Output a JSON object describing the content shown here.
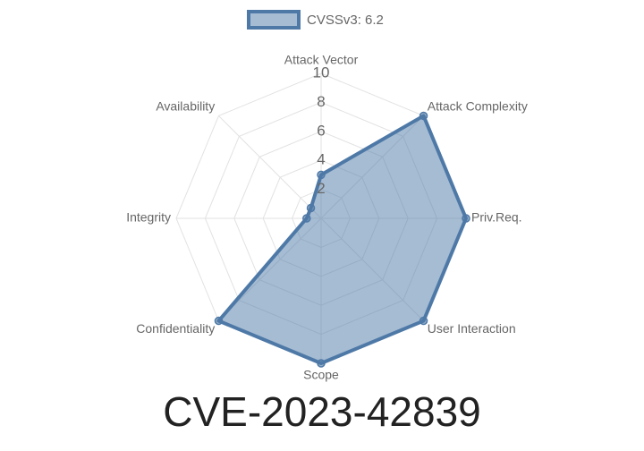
{
  "chart_data": {
    "type": "radar",
    "title": "CVE-2023-42839",
    "categories": [
      "Attack Vector",
      "Attack Complexity",
      "Priv.Req.",
      "User Interaction",
      "Scope",
      "Confidentiality",
      "Integrity",
      "Availability"
    ],
    "series": [
      {
        "name": "CVSSv3: 6.2",
        "color": "#4e79a7",
        "values": [
          3,
          10,
          10,
          10,
          10,
          10,
          1,
          1
        ]
      }
    ],
    "ylim": [
      0,
      10
    ],
    "yticks": [
      2,
      4,
      6,
      8,
      10
    ],
    "grid": true,
    "legend": "top"
  }
}
